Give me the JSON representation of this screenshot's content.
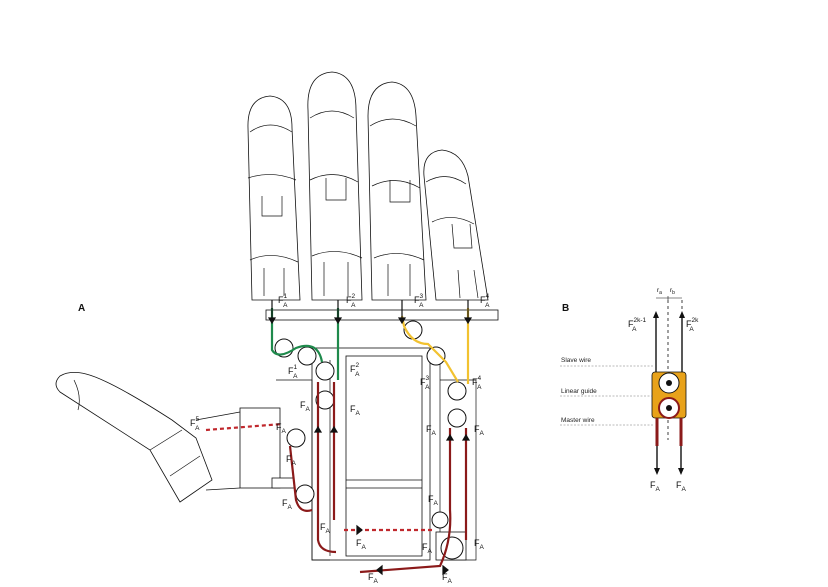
{
  "panels": {
    "a": "A",
    "b": "B"
  },
  "force_symbol": "F",
  "force_subscript": "A",
  "labels": {
    "f1_sup": "1",
    "f2_sup": "2",
    "f3_sup": "3",
    "f4_sup": "4",
    "f5_sup": "5",
    "b_left_sup": "2k-1",
    "b_right_sup": "2k",
    "r_a": "r",
    "r_a_sub": "a",
    "r_b": "r",
    "r_b_sub": "b"
  },
  "legend": {
    "slave": "Slave wire",
    "guide": "Linear guide",
    "master": "Master wire"
  },
  "colors": {
    "green_wire": "#1f8a4c",
    "yellow_wire": "#f2c230",
    "master_wire": "#8b1a1a",
    "red_dashed": "#c0282d",
    "guide_orange": "#e8a21a",
    "outline": "#111111"
  }
}
